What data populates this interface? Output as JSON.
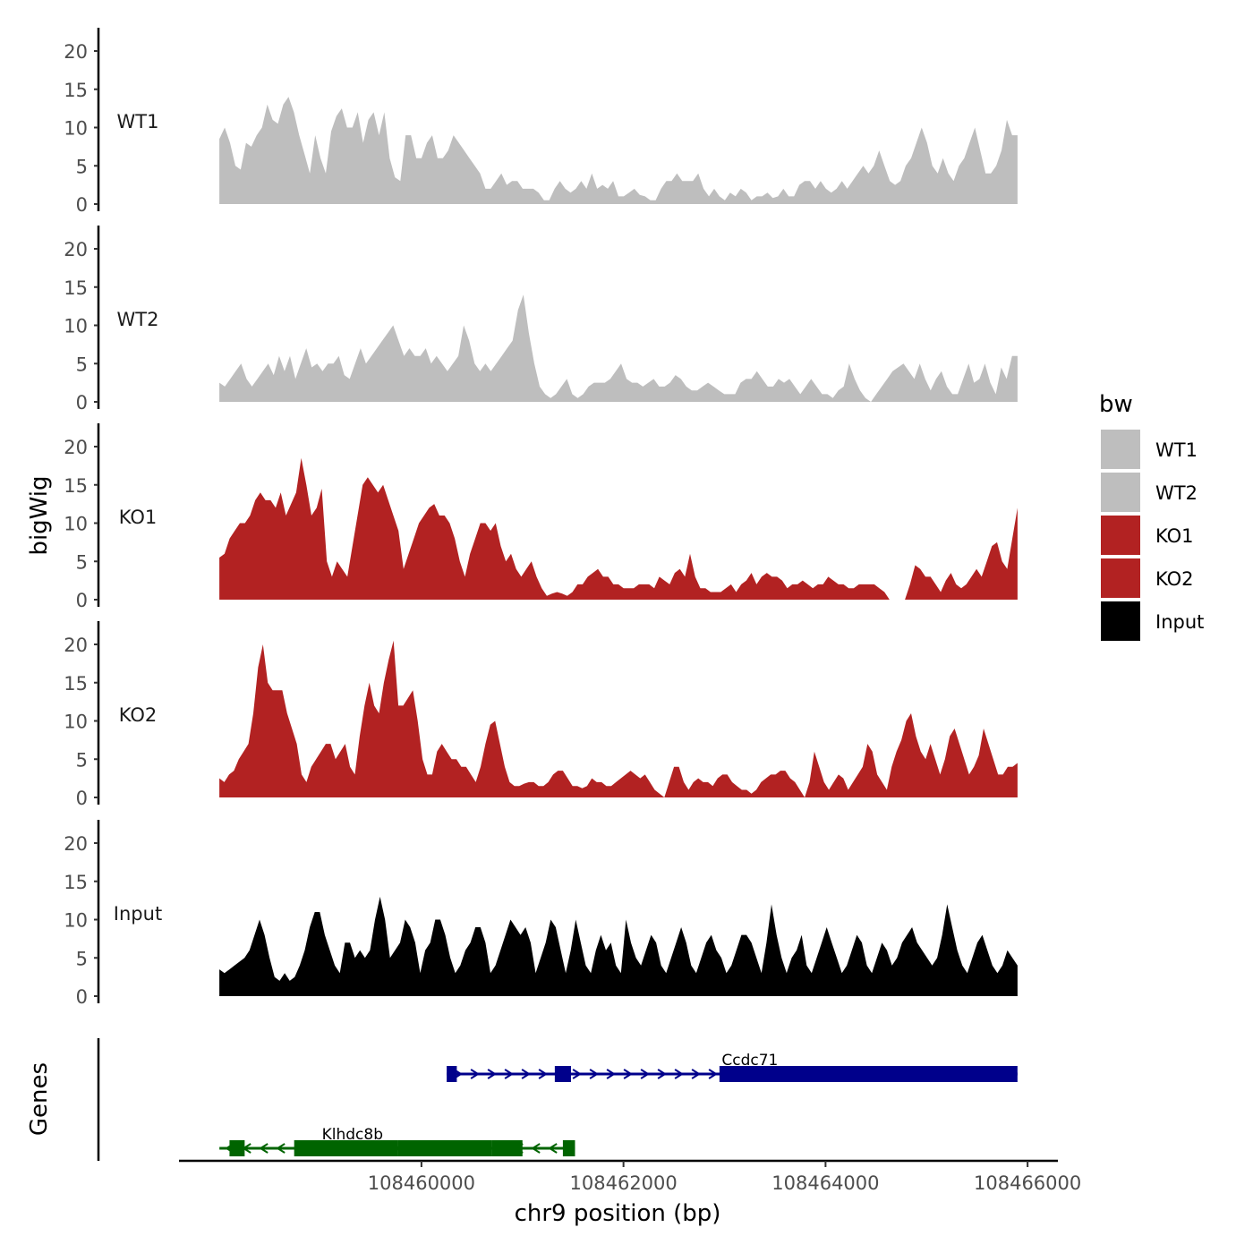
{
  "chart_data": {
    "type": "area",
    "title": "",
    "ylabel": "bigWig",
    "genes_label": "Genes",
    "xlabel": "chr9 position (bp)",
    "xlim": [
      108457600,
      108466300
    ],
    "data_range": [
      108458000,
      108465900
    ],
    "ylim": [
      0,
      23
    ],
    "y_ticks": [
      "0",
      "5",
      "10",
      "15",
      "20"
    ],
    "x_ticks": [
      {
        "value": 108460000,
        "label": "108460000"
      },
      {
        "value": 108462000,
        "label": "108462000"
      },
      {
        "value": 108464000,
        "label": "108464000"
      },
      {
        "value": 108466000,
        "label": "108466000"
      }
    ],
    "legend": {
      "title": "bw",
      "items": [
        {
          "label": "WT1",
          "color": "#bebebe"
        },
        {
          "label": "WT2",
          "color": "#bebebe"
        },
        {
          "label": "KO1",
          "color": "#b22222"
        },
        {
          "label": "KO2",
          "color": "#b22222"
        },
        {
          "label": "Input",
          "color": "#000000"
        }
      ]
    },
    "series": [
      {
        "name": "WT1",
        "color": "#bebebe",
        "values": [
          8.5,
          10,
          8,
          5,
          4.5,
          8,
          7.5,
          9,
          10,
          13,
          11,
          10.5,
          13,
          14,
          12,
          9,
          6.5,
          4,
          9,
          6,
          4,
          9.5,
          11.5,
          12.5,
          10,
          10,
          12,
          8,
          11,
          12,
          9,
          12,
          6,
          3.5,
          3,
          9,
          9,
          6,
          6,
          8,
          9,
          6,
          6,
          7,
          9,
          8,
          7,
          6,
          5,
          4,
          2,
          2,
          3,
          4,
          2.5,
          3,
          3,
          2,
          2,
          2,
          1.5,
          0.5,
          0.5,
          2,
          3,
          2,
          1.5,
          2,
          3,
          2,
          4,
          2,
          2.5,
          2,
          3,
          1,
          1,
          1.5,
          2,
          1.2,
          1,
          0.5,
          0.5,
          2,
          3,
          3,
          4,
          3,
          3,
          3,
          4,
          2,
          1,
          2,
          1,
          0.5,
          1.5,
          1,
          2,
          1.5,
          0.5,
          1,
          1,
          1.5,
          0.8,
          1,
          2,
          1,
          1,
          2.5,
          3,
          3,
          2,
          3,
          2,
          1.5,
          2,
          3,
          2,
          3,
          4,
          5,
          4,
          5,
          7,
          5,
          3,
          2.5,
          3,
          5,
          6,
          8,
          10,
          8,
          5,
          4,
          6,
          4,
          3,
          5,
          6,
          8,
          10,
          7,
          4,
          4,
          5,
          7,
          11,
          9,
          9
        ]
      },
      {
        "name": "WT2",
        "color": "#bebebe",
        "values": [
          2.5,
          2,
          3,
          4,
          5,
          3,
          2,
          3,
          4,
          5,
          3.5,
          6,
          4,
          6,
          3,
          5,
          7,
          4.5,
          5,
          4,
          5,
          5,
          6,
          3.5,
          3,
          5,
          7,
          5,
          6,
          7,
          8,
          9,
          10,
          8,
          6,
          7,
          6,
          6,
          7,
          5,
          6,
          5,
          4,
          5,
          6,
          10,
          8,
          5,
          4,
          5,
          4,
          5,
          6,
          7,
          8,
          12,
          14,
          9,
          5,
          2,
          1,
          0.5,
          1,
          2,
          3,
          1,
          0.5,
          1,
          2,
          2.5,
          2.5,
          2.5,
          3,
          4,
          5,
          3,
          2.5,
          2.5,
          2,
          2.5,
          3,
          2,
          2,
          2.5,
          3.5,
          3,
          2,
          1.5,
          1.5,
          2,
          2.5,
          2,
          1.5,
          1,
          1,
          1,
          2.5,
          3,
          3,
          4,
          3,
          2,
          2,
          3,
          2.5,
          3,
          2,
          1,
          2,
          3,
          2,
          1,
          1,
          0.5,
          1.5,
          2,
          5,
          3,
          1.5,
          0.5,
          0,
          1,
          2,
          3,
          4,
          4.5,
          5,
          4,
          3,
          5,
          3,
          1.5,
          3,
          4,
          2,
          1,
          1,
          3,
          5,
          2.5,
          3,
          5,
          2.5,
          1,
          4.5,
          3,
          6,
          6
        ]
      },
      {
        "name": "KO1",
        "color": "#b22222",
        "values": [
          5.5,
          6,
          8,
          9,
          10,
          10,
          11,
          13,
          14,
          13,
          13,
          12,
          14,
          11,
          12.5,
          14,
          18.5,
          15,
          11,
          12,
          14.5,
          5,
          3,
          5,
          4,
          3,
          7,
          11,
          15,
          16,
          15,
          14,
          15,
          13,
          11,
          9,
          4,
          6,
          8,
          10,
          11,
          12,
          12.5,
          11,
          11,
          10,
          8,
          5,
          3,
          6,
          8,
          10,
          10,
          9,
          10,
          7,
          5,
          6,
          4,
          3,
          4,
          5,
          3,
          1.5,
          0.5,
          0.8,
          1,
          0.8,
          0.5,
          1,
          2,
          2,
          3,
          3.5,
          4,
          3,
          3,
          2,
          2,
          1.5,
          1.5,
          1.5,
          2,
          2,
          2,
          1.5,
          3,
          2.5,
          2,
          3.5,
          4,
          3,
          6,
          3,
          1.5,
          1.5,
          1,
          1,
          1,
          1.5,
          2,
          1,
          2,
          2.5,
          3.5,
          2,
          3,
          3.5,
          3,
          3,
          2.5,
          1.5,
          2,
          2,
          2.5,
          2,
          1.5,
          2,
          2,
          3,
          2.5,
          2,
          2,
          1.5,
          1.5,
          2,
          2,
          2,
          2,
          1.5,
          1,
          0,
          0,
          0,
          0,
          2,
          4.5,
          4,
          3,
          3,
          2,
          1,
          2.5,
          3.5,
          2,
          1.5,
          2,
          3,
          4,
          3,
          5,
          7,
          7.5,
          5,
          4,
          8,
          12
        ]
      },
      {
        "name": "KO2",
        "color": "#b22222",
        "values": [
          2.5,
          2,
          3,
          3.5,
          5,
          6,
          7,
          11,
          17,
          20,
          15,
          14,
          14,
          14,
          11,
          9,
          7,
          3,
          2,
          4,
          5,
          6,
          7,
          7,
          5,
          6,
          7,
          4,
          3,
          8,
          12,
          15,
          12,
          11,
          15,
          18,
          20.5,
          12,
          12,
          13,
          14,
          10,
          5,
          3,
          3,
          6,
          7,
          6,
          5,
          5,
          4,
          4,
          3,
          2,
          4,
          7,
          9.5,
          10,
          7,
          4,
          2,
          1.5,
          1.5,
          1.8,
          2,
          2,
          1.5,
          1.5,
          2,
          3,
          3.5,
          3.5,
          2.5,
          1.5,
          1.5,
          1.2,
          1.5,
          2.5,
          2,
          2,
          1.5,
          1.5,
          2,
          2.5,
          3,
          3.5,
          3,
          2.5,
          3,
          2,
          1,
          0.5,
          0,
          2,
          4,
          4,
          2,
          1,
          2,
          2.5,
          2,
          2,
          1.5,
          2.5,
          3,
          3,
          2,
          1.5,
          1,
          1,
          0.5,
          1,
          2,
          2.5,
          3,
          3,
          3.5,
          3.5,
          2.5,
          2,
          1,
          0,
          2,
          6,
          4,
          2,
          1,
          2,
          3,
          2.5,
          1,
          2,
          3,
          4,
          7,
          6,
          3,
          2,
          1,
          4,
          6,
          7.5,
          10,
          11,
          8,
          6,
          5,
          7,
          5,
          3,
          5,
          8,
          9,
          7,
          5,
          3,
          4,
          5.5,
          9,
          7,
          5,
          3,
          3,
          4,
          4,
          4.5
        ]
      },
      {
        "name": "Input",
        "color": "#000000",
        "values": [
          3.5,
          3,
          3.5,
          4,
          4.5,
          5,
          6,
          8,
          10,
          8,
          5,
          2.5,
          2,
          3,
          2,
          2.5,
          4,
          6,
          9,
          11,
          11,
          8,
          6,
          4,
          3,
          7,
          7,
          5,
          6,
          5,
          6,
          10,
          13,
          10,
          5,
          6,
          7,
          10,
          9,
          7,
          3,
          6,
          7,
          10,
          10,
          8,
          5,
          3,
          4,
          6,
          7,
          9,
          9,
          7,
          3,
          4,
          6,
          8,
          10,
          9,
          8,
          9,
          7,
          3,
          5,
          7,
          10,
          9,
          6,
          3,
          6,
          10,
          7,
          4,
          3,
          6,
          8,
          6,
          7,
          4,
          3,
          10,
          7,
          5,
          4,
          6,
          8,
          7,
          4,
          3,
          5,
          7,
          9,
          7,
          4,
          3,
          5,
          7,
          8,
          6,
          5,
          3,
          4,
          6,
          8,
          8,
          7,
          5,
          3,
          7,
          12,
          8,
          5,
          3,
          5,
          6,
          8,
          4,
          3,
          5,
          7,
          9,
          7,
          5,
          3,
          4,
          6,
          8,
          7,
          4,
          3,
          5,
          7,
          6,
          4,
          5,
          7,
          8,
          9,
          7,
          6,
          5,
          4,
          5,
          8,
          12,
          9,
          6,
          4,
          3,
          5,
          7,
          8,
          6,
          4,
          3,
          4,
          6,
          5,
          4
        ]
      }
    ],
    "genes": [
      {
        "name": "Ccdc71",
        "color": "#00008b",
        "strand": "+",
        "line": [
          108460250,
          108465900
        ],
        "exons": [
          [
            108460250,
            108460350,
            "cds"
          ],
          [
            108461320,
            108461480,
            "cds"
          ],
          [
            108462950,
            108465900,
            "cds"
          ]
        ]
      },
      {
        "name": "Klhdc8b",
        "color": "#006400",
        "strand": "-",
        "line": [
          108458000,
          108461520
        ],
        "exons": [
          [
            108458100,
            108458250,
            "cds"
          ],
          [
            108458740,
            108459770,
            "cds"
          ],
          [
            108459770,
            108460700,
            "cds"
          ],
          [
            108460700,
            108461000,
            "cds"
          ],
          [
            108461400,
            108461520,
            "cds"
          ]
        ]
      }
    ]
  }
}
